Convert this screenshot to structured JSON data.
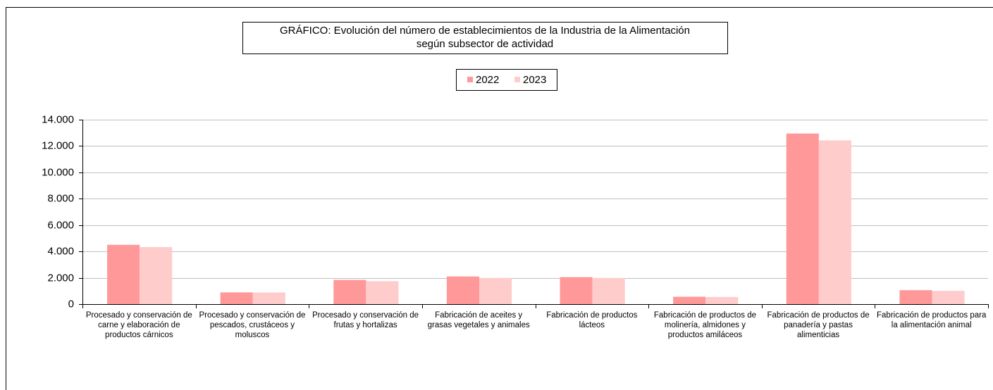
{
  "chart_data": {
    "type": "bar",
    "title_lines": [
      "GRÁFICO: Evolución del número de establecimientos de la Industria de la Alimentación",
      "según subsector de actividad"
    ],
    "categories": [
      "Procesado y conservación de carne y elaboración de productos cárnicos",
      "Procesado y conservación de pescados, crustáceos y moluscos",
      "Procesado y conservación de frutas y hortalizas",
      "Fabricación de aceites y grasas vegetales y animales",
      "Fabricación de productos lácteos",
      "Fabricación de productos de molinería, almidones y productos amiláceos",
      "Fabricación de productos de panadería y pastas alimenticias",
      "Fabricación de productos para la alimentación animal"
    ],
    "series": [
      {
        "name": "2022",
        "color": "#ff9999",
        "values": [
          4500,
          890,
          1840,
          2100,
          2050,
          560,
          12950,
          1060
        ]
      },
      {
        "name": "2023",
        "color": "#ffcccc",
        "values": [
          4330,
          880,
          1740,
          1990,
          1990,
          540,
          12430,
          1010
        ]
      }
    ],
    "ylim": [
      0,
      14000
    ],
    "yticks": [
      0,
      {
        "value": 2000,
        "label": "2.000"
      },
      {
        "value": 4000,
        "label": "4.000"
      },
      {
        "value": 6000,
        "label": "6.000"
      },
      {
        "value": 8000,
        "label": "8.000"
      },
      {
        "value": 10000,
        "label": "10.000"
      },
      {
        "value": 12000,
        "label": "12.000"
      },
      {
        "value": 14000,
        "label": "14.000"
      }
    ],
    "grid": true,
    "legend": "top"
  }
}
